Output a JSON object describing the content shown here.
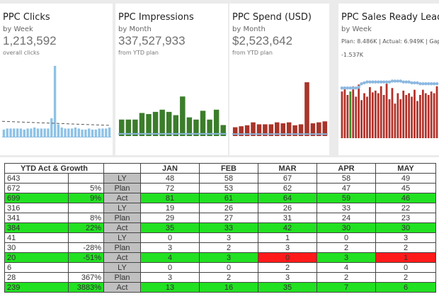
{
  "colors": {
    "clicks_bar": "#8ec2e6",
    "impressions_bar": "#3b7d2b",
    "spend_bar": "#a8352a",
    "leads_bar": "#b2322a",
    "leads_highlight": "#3b8a2a",
    "plan_line": "#8bb8e0",
    "act_green": "#22e022",
    "act_red": "#ff1a1a",
    "label_gray": "#c0c0c0"
  },
  "cards": [
    {
      "title": "PPC Clicks",
      "period": "by Week",
      "value": "1,213,592",
      "note": "overall clicks",
      "chart_data": {
        "type": "bar",
        "values": [
          7,
          8,
          8,
          8,
          8,
          8,
          7,
          8,
          8,
          9,
          8,
          8,
          8,
          8,
          18,
          69,
          12,
          9,
          8,
          8,
          8,
          9,
          8,
          7,
          7,
          8,
          7,
          7,
          8,
          8,
          8,
          9
        ],
        "trend": [
          15,
          11
        ]
      }
    },
    {
      "title": "PPC Impressions",
      "period": "by Month",
      "value": "337,527,933",
      "note": "from YTD plan",
      "chart_data": {
        "type": "bar",
        "values": [
          15,
          15,
          15,
          21,
          20,
          22,
          24,
          22,
          19,
          36,
          17,
          15,
          23,
          15,
          24,
          10
        ],
        "plan": 2
      }
    },
    {
      "title": "PPC Spend (USD)",
      "period": "by Month",
      "value": "$2,523,642",
      "note": "from YTD plan",
      "chart_data": {
        "type": "bar",
        "values": [
          9,
          10,
          11,
          14,
          12,
          12,
          12,
          14,
          13,
          14,
          11,
          12,
          55,
          13,
          14,
          15
        ],
        "plan": 2
      }
    },
    {
      "title": "PPC Sales Ready Leads",
      "period": "by Week",
      "plan_text": "Plan: 8.486K | Actual: 6.949K | Gap",
      "gap_text": "-1.537K",
      "chart_data": {
        "type": "bar",
        "values": [
          54,
          59,
          50,
          54,
          60,
          48,
          62,
          44,
          52,
          48,
          59,
          53,
          55,
          52,
          60,
          50,
          63,
          45,
          58,
          40,
          52,
          45,
          55,
          50,
          52,
          48,
          56,
          43,
          50,
          56,
          52,
          50,
          54,
          52,
          60
        ],
        "highlight_index": 3,
        "plan": [
          58,
          58,
          58,
          58,
          58,
          58,
          59,
          63,
          64,
          65,
          65,
          65,
          65,
          65,
          65,
          65,
          65,
          65,
          66,
          66,
          66,
          66,
          65,
          65,
          65,
          64,
          64,
          64,
          63,
          63,
          63,
          63,
          63,
          63,
          63
        ]
      }
    }
  ],
  "table": {
    "header": {
      "ytd": "YTD Act & Growth",
      "months": [
        "JAN",
        "FEB",
        "MAR",
        "APR",
        "MAY"
      ]
    },
    "rows": [
      {
        "ytd": "643",
        "growth": "",
        "label": "LY",
        "values": [
          "48",
          "58",
          "67",
          "58",
          "49"
        ],
        "kind": "ly",
        "colors": []
      },
      {
        "ytd": "672",
        "growth": "5%",
        "label": "Plan",
        "values": [
          "72",
          "53",
          "62",
          "47",
          "45"
        ],
        "kind": "plan",
        "colors": []
      },
      {
        "ytd": "699",
        "growth": "9%",
        "label": "Act",
        "values": [
          "81",
          "61",
          "64",
          "59",
          "46"
        ],
        "kind": "act",
        "colors": [
          "green",
          "green",
          "green",
          "green",
          "green"
        ]
      },
      {
        "ytd": "316",
        "growth": "",
        "label": "LY",
        "values": [
          "19",
          "26",
          "26",
          "33",
          "22"
        ],
        "kind": "ly",
        "colors": []
      },
      {
        "ytd": "341",
        "growth": "8%",
        "label": "Plan",
        "values": [
          "29",
          "27",
          "31",
          "24",
          "23"
        ],
        "kind": "plan",
        "colors": []
      },
      {
        "ytd": "384",
        "growth": "22%",
        "label": "Act",
        "values": [
          "35",
          "33",
          "42",
          "30",
          "30"
        ],
        "kind": "act",
        "colors": [
          "green",
          "green",
          "green",
          "green",
          "green"
        ]
      },
      {
        "ytd": "41",
        "growth": "",
        "label": "LY",
        "values": [
          "0",
          "3",
          "1",
          "0",
          "3"
        ],
        "kind": "ly",
        "colors": []
      },
      {
        "ytd": "30",
        "growth": "-28%",
        "label": "Plan",
        "values": [
          "3",
          "2",
          "3",
          "2",
          "2"
        ],
        "kind": "plan",
        "colors": []
      },
      {
        "ytd": "20",
        "growth": "-51%",
        "label": "Act",
        "values": [
          "4",
          "3",
          "0",
          "3",
          "1"
        ],
        "kind": "act",
        "colors": [
          "green",
          "green",
          "red",
          "green",
          "red"
        ]
      },
      {
        "ytd": "6",
        "growth": "",
        "label": "LY",
        "values": [
          "0",
          "0",
          "2",
          "4",
          "0"
        ],
        "kind": "ly",
        "colors": []
      },
      {
        "ytd": "28",
        "growth": "367%",
        "label": "Plan",
        "values": [
          "3",
          "2",
          "3",
          "2",
          "2"
        ],
        "kind": "plan",
        "colors": []
      },
      {
        "ytd": "239",
        "growth": "3883%",
        "label": "Act",
        "values": [
          "13",
          "16",
          "35",
          "7",
          "6"
        ],
        "kind": "act",
        "colors": [
          "green",
          "green",
          "green",
          "green",
          "green"
        ]
      }
    ]
  }
}
